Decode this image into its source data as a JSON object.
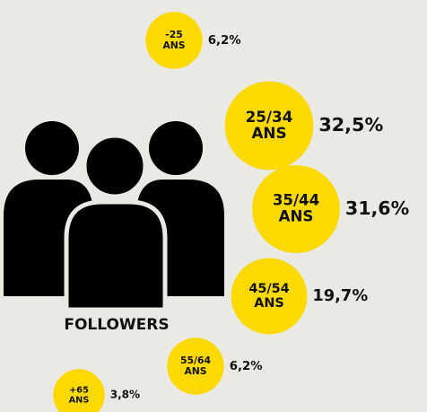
{
  "chart_data": {
    "type": "bubble",
    "caption": "FOLLOWERS",
    "categories": [
      "-25",
      "25/34",
      "35/44",
      "45/54",
      "55/64",
      "+65"
    ],
    "category_suffix": "ANS",
    "values": [
      6.2,
      32.5,
      31.6,
      19.7,
      6.2,
      3.8
    ],
    "value_labels": [
      "6,2%",
      "32,5%",
      "31,6%",
      "19,7%",
      "6,2%",
      "3,8%"
    ],
    "color": "#fcd900"
  }
}
